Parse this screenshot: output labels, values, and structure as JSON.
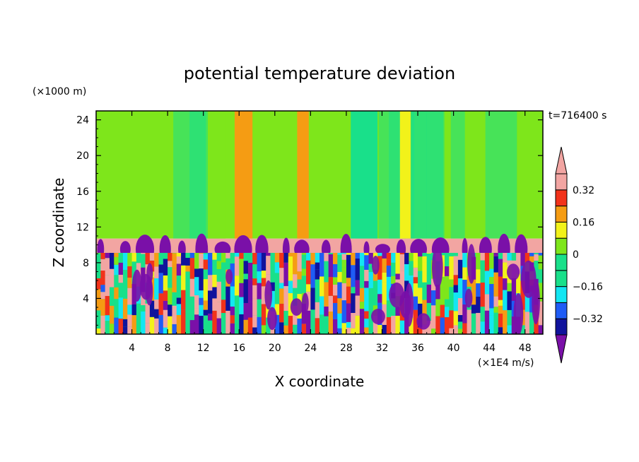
{
  "colors": {
    "deep_purple": "#7a10a8",
    "dark_blue": "#10139c",
    "blue": "#1f5cf5",
    "cyan": "#13e6f2",
    "sea_green": "#19e08a",
    "green": "#7ee61b",
    "yellow": "#f2f21a",
    "orange": "#f59c13",
    "red": "#f2321a",
    "pink": "#f2a5a2"
  },
  "chart_data": {
    "type": "heatmap",
    "title": "potential temperature deviation",
    "xlabel": "X coordinate",
    "ylabel": "Z coordinate",
    "x_unit": "(×1E4 m/s)",
    "y_unit": "(×1000 m)",
    "time_label": "t=716400 s",
    "xlim": [
      0,
      50
    ],
    "ylim": [
      0,
      25
    ],
    "x_ticks": [
      4,
      8,
      12,
      16,
      20,
      24,
      28,
      32,
      36,
      40,
      44,
      48
    ],
    "y_ticks": [
      4,
      8,
      12,
      16,
      20,
      24
    ],
    "colorbar": {
      "levels": [
        -0.4,
        -0.32,
        -0.24,
        -0.16,
        -0.08,
        0,
        0.08,
        0.16,
        0.24,
        0.32,
        0.4
      ],
      "tick_labels": [
        "0.32",
        "0.16",
        "0",
        "−0.16",
        "−0.32"
      ],
      "tick_values": [
        0.32,
        0.16,
        0,
        -0.16,
        -0.32
      ],
      "extend": "both"
    },
    "layers": [
      {
        "z_range": [
          10.7,
          25
        ],
        "field": "mostly between 0 and 0.08 with vertical bands"
      },
      {
        "z_range": [
          9.1,
          10.7
        ],
        "field": "above 0.4 with negative plumes"
      },
      {
        "z_range": [
          0,
          9.1
        ],
        "field": "turbulent, full range"
      }
    ],
    "upper_bands": [
      {
        "x": [
          15.5,
          17.5
        ],
        "value": 0.2
      },
      {
        "x": [
          22.5,
          23.8
        ],
        "value": 0.2
      },
      {
        "x": [
          28.5,
          31.5
        ],
        "value": -0.12
      },
      {
        "x": [
          34,
          35.2
        ],
        "value": 0.12
      },
      {
        "x": [
          12.5,
          14.5
        ],
        "value": 0.04
      }
    ]
  }
}
